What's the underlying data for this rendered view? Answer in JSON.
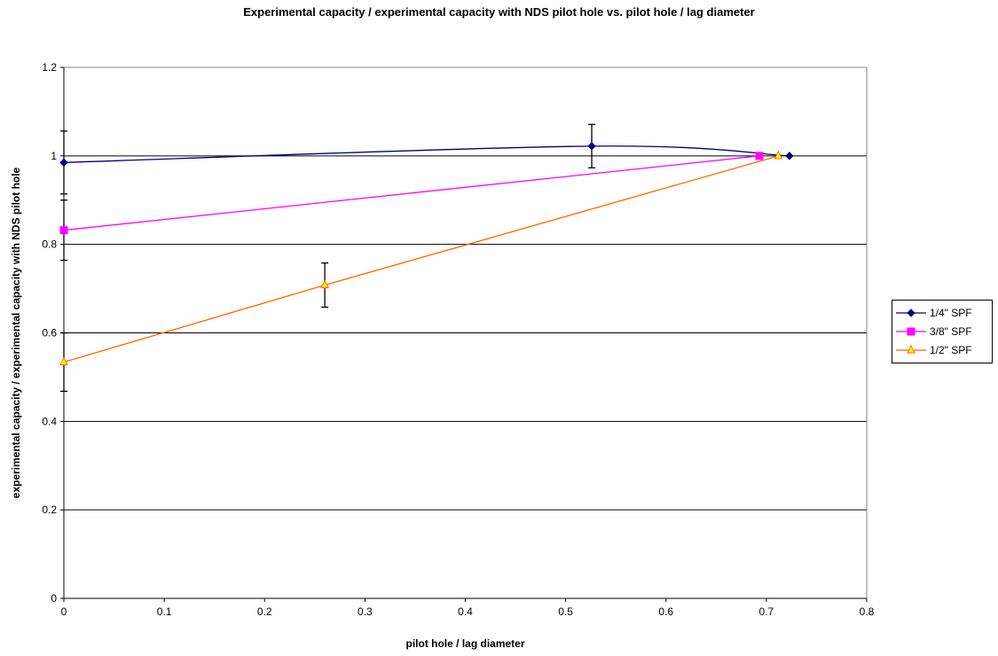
{
  "chart_data": {
    "type": "line",
    "title": "Experimental capacity / experimental capacity with NDS pilot hole vs. pilot hole / lag diameter",
    "xlabel": "pilot hole / lag diameter",
    "ylabel": "experimental capacity / experimental capacity with NDS pilot hole",
    "xlim": [
      0,
      0.8
    ],
    "ylim": [
      0,
      1.2
    ],
    "xticks": [
      "0",
      "0.1",
      "0.2",
      "0.3",
      "0.4",
      "0.5",
      "0.6",
      "0.7",
      "0.8"
    ],
    "yticks": [
      "0",
      "0.2",
      "0.4",
      "0.6",
      "0.8",
      "1",
      "1.2"
    ],
    "grid": "horizontal major gridlines",
    "legend_position": "right",
    "series": [
      {
        "name": "1/4\" SPF",
        "color": "#000080",
        "marker": "diamond",
        "smooth": true,
        "x": [
          0,
          0.526,
          0.723
        ],
        "y": [
          0.985,
          1.022,
          1.0
        ],
        "error": [
          0.071,
          0.049,
          0
        ]
      },
      {
        "name": "3/8\" SPF",
        "color": "#FF00FF",
        "marker": "square",
        "smooth": false,
        "x": [
          0,
          0.693
        ],
        "y": [
          0.832,
          1.0
        ],
        "error": [
          0.068,
          0
        ]
      },
      {
        "name": "1/2\" SPF",
        "color": "#FF6600",
        "markerFill": "#FFFF00",
        "marker": "triangle",
        "smooth": false,
        "x": [
          0,
          0.26,
          0.712
        ],
        "y": [
          0.534,
          0.708,
          1.0
        ],
        "error": [
          0.066,
          0.05,
          0
        ]
      }
    ]
  }
}
